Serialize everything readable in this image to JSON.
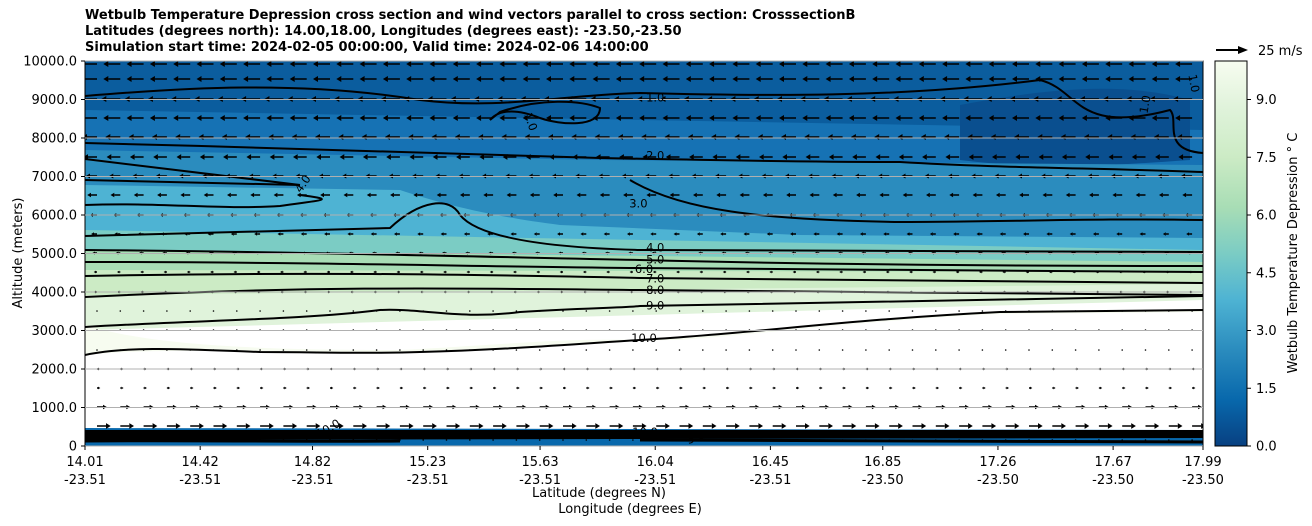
{
  "chart_data": {
    "type": "filled-contour cross section",
    "title_lines": [
      "Wetbulb Temperature Depression cross section and wind vectors parallel to cross section: CrosssectionB",
      "Latitudes (degrees north): 14.00,18.00, Longitudes (degrees east): -23.50,-23.50",
      "Simulation start time: 2024-02-05 00:00:00, Valid time: 2024-02-06 14:00:00"
    ],
    "ylabel": "Altitude (meters)",
    "xlabel_lat": "Latitude (degrees N)",
    "xlabel_lon": "Longitude (degrees E)",
    "ylim": [
      0,
      10000
    ],
    "y_ticks": [
      "0",
      "1000.0",
      "2000.0",
      "3000.0",
      "4000.0",
      "5000.0",
      "6000.0",
      "7000.0",
      "8000.0",
      "9000.0",
      "10000.0"
    ],
    "x_ticks": [
      {
        "lat": "14.01",
        "lon": "-23.51"
      },
      {
        "lat": "14.42",
        "lon": "-23.51"
      },
      {
        "lat": "14.82",
        "lon": "-23.51"
      },
      {
        "lat": "15.23",
        "lon": "-23.51"
      },
      {
        "lat": "15.63",
        "lon": "-23.51"
      },
      {
        "lat": "16.04",
        "lon": "-23.51"
      },
      {
        "lat": "16.45",
        "lon": "-23.51"
      },
      {
        "lat": "16.85",
        "lon": "-23.50"
      },
      {
        "lat": "17.26",
        "lon": "-23.50"
      },
      {
        "lat": "17.67",
        "lon": "-23.50"
      },
      {
        "lat": "17.99",
        "lon": "-23.50"
      }
    ],
    "grid": "horizontal",
    "colorbar": {
      "label": "Wetbulb Temperature Depression ° C",
      "range": [
        0,
        10
      ],
      "ticks": [
        "0.0",
        "1.5",
        "3.0",
        "4.5",
        "6.0",
        "7.5",
        "9.0"
      ],
      "colormap": "GnBu_r"
    },
    "wind_key": "25 m/s",
    "contours": [
      {
        "level": "1.0",
        "altitude": 9050,
        "label_at": "16.04"
      },
      {
        "level": "2.0",
        "altitude": 7550,
        "label_at": "16.04"
      },
      {
        "level": "3.0",
        "altitude": 6300,
        "label_at": "15.98"
      },
      {
        "level": "4.0",
        "altitude": 5150,
        "label_at": "16.04"
      },
      {
        "level": "5.0",
        "altitude": 4850,
        "label_at": "16.04"
      },
      {
        "level": "6.0",
        "altitude": 4600,
        "label_at": "16.00"
      },
      {
        "level": "7.0",
        "altitude": 4350,
        "label_at": "16.04"
      },
      {
        "level": "8.0",
        "altitude": 4050,
        "label_at": "16.04"
      },
      {
        "level": "9.0",
        "altitude": 3650,
        "label_at": "16.04"
      },
      {
        "level": "10.0",
        "altitude": 2800,
        "label_at": "16.00"
      }
    ],
    "extra_contour_labels": [
      "1.0",
      "1.0",
      "1.0",
      "4.0",
      "10.0",
      "10.0",
      "3.0"
    ]
  }
}
